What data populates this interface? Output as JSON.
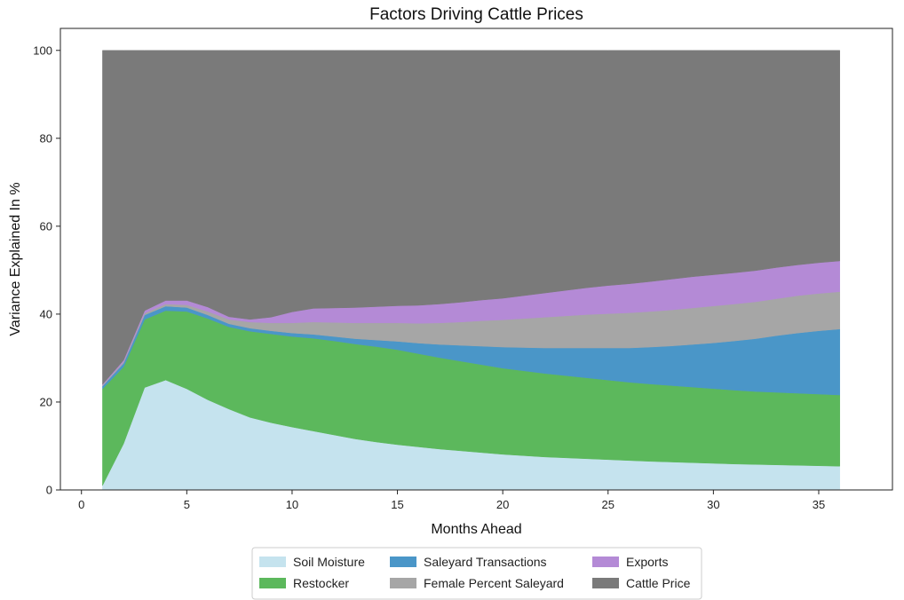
{
  "chart_data": {
    "type": "area",
    "stacked": true,
    "title": "Factors Driving Cattle Prices",
    "xlabel": "Months Ahead",
    "ylabel": "Variance Explained In %",
    "xlim": [
      -1,
      38.5
    ],
    "ylim": [
      0,
      105
    ],
    "xticks": [
      0,
      5,
      10,
      15,
      20,
      25,
      30,
      35
    ],
    "yticks": [
      0,
      20,
      40,
      60,
      80,
      100
    ],
    "grid": false,
    "legend_position": "bottom-center",
    "x": [
      1,
      2,
      3,
      4,
      5,
      6,
      7,
      8,
      9,
      10,
      11,
      12,
      13,
      14,
      15,
      16,
      17,
      18,
      19,
      20,
      21,
      22,
      23,
      24,
      25,
      26,
      27,
      28,
      29,
      30,
      31,
      32,
      33,
      34,
      35,
      36
    ],
    "series": [
      {
        "name": "Soil Moisture",
        "color": "#c5e3ee",
        "values": [
          1.0,
          10.5,
          23.3,
          25.0,
          23.0,
          20.5,
          18.4,
          16.5,
          15.3,
          14.3,
          13.4,
          12.5,
          11.6,
          10.9,
          10.3,
          9.8,
          9.3,
          8.9,
          8.5,
          8.1,
          7.8,
          7.5,
          7.3,
          7.1,
          6.9,
          6.7,
          6.5,
          6.35,
          6.2,
          6.05,
          5.9,
          5.8,
          5.7,
          5.6,
          5.5,
          5.4
        ]
      },
      {
        "name": "Restocker",
        "color": "#5cb85c",
        "values": [
          22.0,
          17.5,
          15.5,
          15.8,
          17.6,
          18.5,
          18.7,
          19.6,
          20.2,
          20.6,
          21.1,
          21.4,
          21.6,
          21.7,
          21.6,
          21.2,
          20.8,
          20.4,
          20.0,
          19.6,
          19.3,
          19.0,
          18.7,
          18.4,
          18.1,
          17.8,
          17.6,
          17.4,
          17.2,
          17.0,
          16.8,
          16.6,
          16.5,
          16.4,
          16.3,
          16.2
        ]
      },
      {
        "name": "Saleyard Transactions",
        "color": "#4a96c8",
        "values": [
          0.6,
          0.8,
          1.0,
          1.0,
          0.9,
          0.8,
          0.7,
          0.7,
          0.7,
          0.8,
          0.9,
          1.0,
          1.2,
          1.5,
          1.9,
          2.4,
          3.0,
          3.6,
          4.2,
          4.8,
          5.3,
          5.8,
          6.3,
          6.8,
          7.3,
          7.8,
          8.4,
          9.0,
          9.7,
          10.4,
          11.2,
          12.0,
          12.9,
          13.7,
          14.4,
          15.0
        ]
      },
      {
        "name": "Female Percent Saleyard",
        "color": "#a6a6a6",
        "values": [
          0.2,
          0.3,
          0.4,
          0.5,
          0.6,
          0.8,
          1.0,
          1.4,
          1.8,
          2.3,
          2.8,
          3.2,
          3.6,
          3.9,
          4.2,
          4.5,
          4.9,
          5.3,
          5.8,
          6.2,
          6.6,
          7.0,
          7.3,
          7.6,
          7.8,
          8.0,
          8.1,
          8.2,
          8.3,
          8.4,
          8.4,
          8.4,
          8.4,
          8.5,
          8.5,
          8.5
        ]
      },
      {
        "name": "Exports",
        "color": "#b48ad6",
        "values": [
          0.2,
          0.4,
          0.6,
          0.8,
          1.0,
          1.0,
          0.6,
          0.6,
          1.3,
          2.5,
          3.1,
          3.3,
          3.5,
          3.7,
          3.9,
          4.1,
          4.3,
          4.5,
          4.7,
          4.9,
          5.2,
          5.5,
          5.8,
          6.1,
          6.4,
          6.6,
          6.8,
          7.0,
          7.1,
          7.1,
          7.1,
          7.1,
          7.1,
          7.0,
          7.0,
          7.0
        ]
      },
      {
        "name": "Cattle Price",
        "color": "#7a7a7a",
        "values": [
          76.0,
          70.5,
          59.2,
          56.9,
          56.9,
          58.4,
          60.6,
          61.2,
          60.7,
          59.5,
          58.7,
          58.6,
          58.5,
          58.3,
          58.1,
          58.0,
          57.7,
          57.3,
          56.8,
          56.4,
          55.8,
          55.2,
          54.6,
          54.0,
          53.5,
          53.1,
          52.6,
          52.05,
          51.5,
          51.05,
          50.6,
          50.1,
          49.4,
          48.8,
          48.3,
          47.9
        ]
      }
    ]
  }
}
